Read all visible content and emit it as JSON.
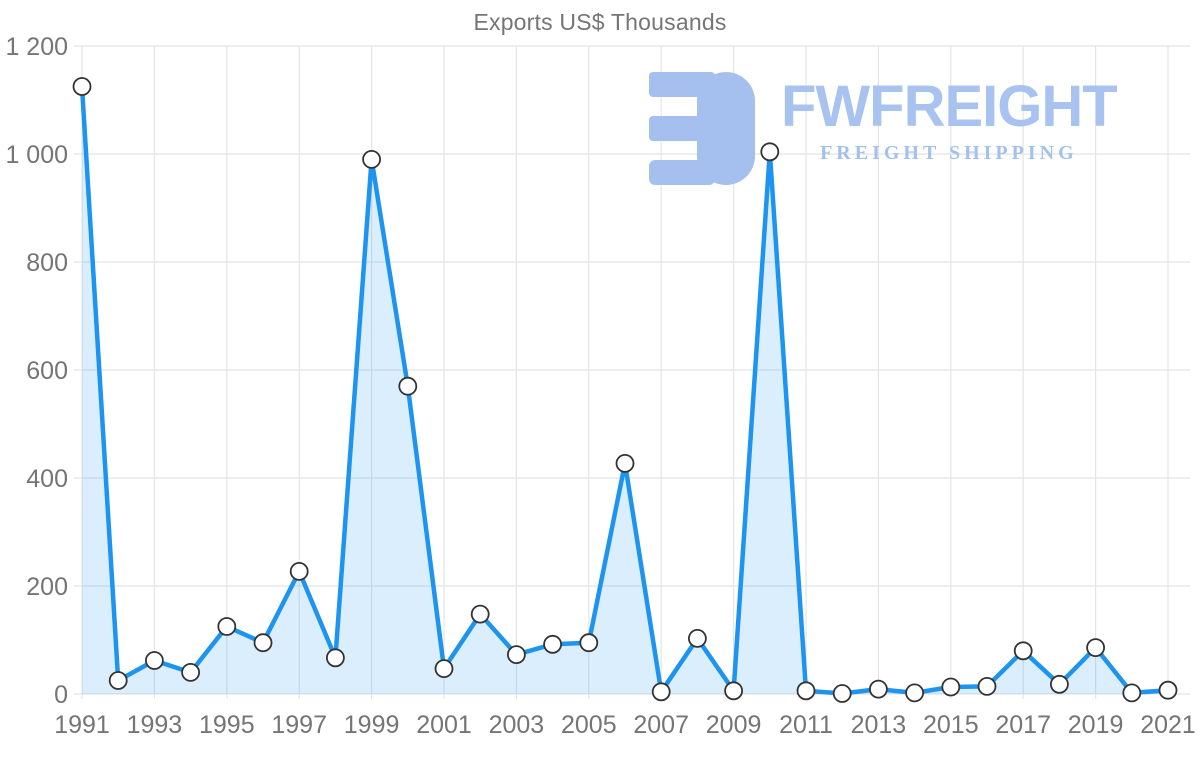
{
  "title": "Exports US$ Thousands",
  "watermark": {
    "brand": "FWFREIGHT",
    "tagline": "FREIGHT SHIPPING"
  },
  "colors": {
    "line": "#1e94f1",
    "fill": "#2196f3",
    "fill_opacity": "0.16",
    "grid": "#e4e4e4",
    "axis_text": "#757575",
    "title_text": "#757575",
    "marker_fill": "#ffffff",
    "marker_stroke": "#333333",
    "watermark_blue": "#a5c0ee"
  },
  "chart_data": {
    "type": "area",
    "title": "Exports US$ Thousands",
    "xlabel": "",
    "ylabel": "",
    "x": [
      1991,
      1992,
      1993,
      1994,
      1995,
      1996,
      1997,
      1998,
      1999,
      2000,
      2001,
      2002,
      2003,
      2004,
      2005,
      2006,
      2007,
      2008,
      2009,
      2010,
      2011,
      2012,
      2013,
      2014,
      2015,
      2016,
      2017,
      2018,
      2019,
      2020,
      2021
    ],
    "values": [
      1125,
      25,
      62,
      40,
      125,
      95,
      227,
      67,
      990,
      570,
      47,
      148,
      73,
      92,
      95,
      427,
      4,
      103,
      6,
      1004,
      6,
      1,
      9,
      2,
      13,
      14,
      80,
      18,
      86,
      2,
      7
    ],
    "series_name": "Exports US$ Thousands",
    "ylim": [
      0,
      1200
    ],
    "yticks": [
      0,
      200,
      400,
      600,
      800,
      1000,
      1200
    ],
    "ytick_labels": [
      "0",
      "200",
      "400",
      "600",
      "800",
      "1 000",
      "1 200"
    ],
    "xticks": [
      1991,
      1993,
      1995,
      1997,
      1999,
      2001,
      2003,
      2005,
      2007,
      2009,
      2011,
      2013,
      2015,
      2017,
      2019,
      2021
    ],
    "grid": true,
    "legend": false,
    "marker": "circle"
  }
}
